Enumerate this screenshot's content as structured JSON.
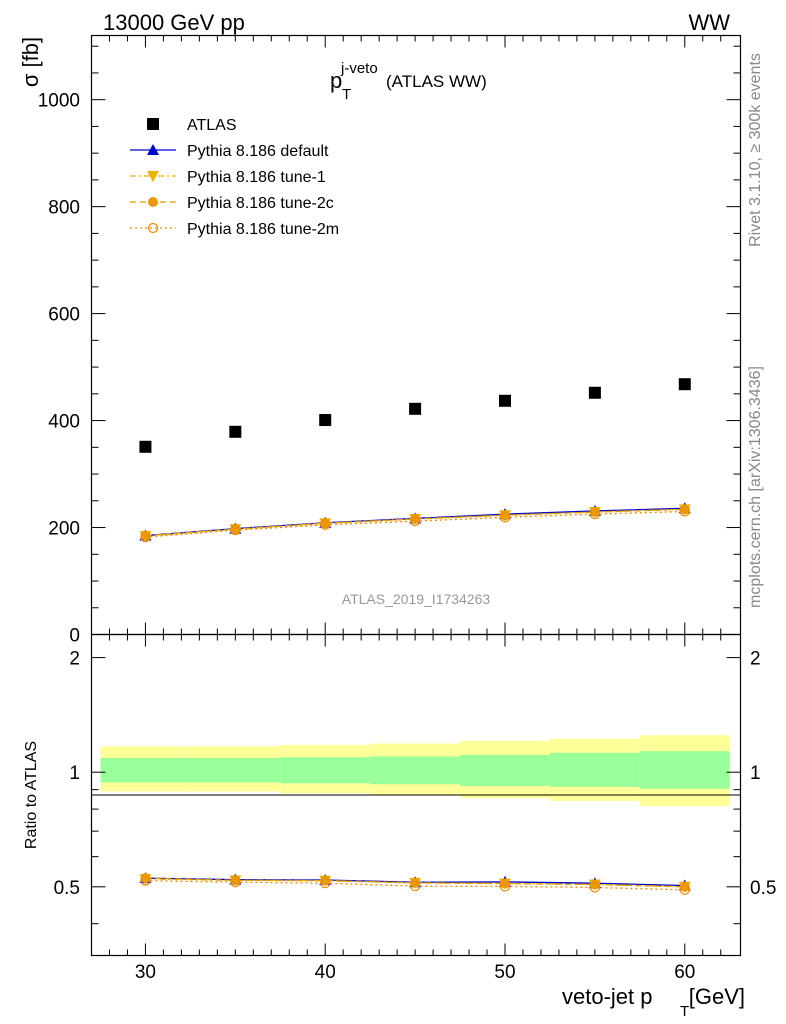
{
  "header": {
    "left": "13000 GeV pp",
    "right": "WW"
  },
  "side_labels": {
    "rivet": "Rivet 3.1.10, ≥ 300k events",
    "mcplots": "mcplots.cern.ch [arXiv:1306.3436]"
  },
  "chart_data": {
    "type": "scatter",
    "title_main": "p",
    "title_sub": "T",
    "title_sup": "j-veto",
    "title_suffix": "(ATLAS WW)",
    "analysis_id": "ATLAS_2019_I1734263",
    "xlabel_main": "veto-jet p",
    "xlabel_sub": "T",
    "xlabel_suffix": "[GeV]",
    "ylabel": "σ [fb]",
    "ratio_ylabel": "Ratio to ATLAS",
    "x_ticks": [
      "30",
      "40",
      "50",
      "60"
    ],
    "y_ticks": [
      "0",
      "200",
      "400",
      "600",
      "800",
      "1000"
    ],
    "ratio_ticks": [
      "0.5",
      "1",
      "2"
    ],
    "xlim": [
      27.0,
      63.1
    ],
    "ylim": [
      0,
      1120
    ],
    "ratio_ylim": [
      0.33,
      2.3
    ],
    "x": [
      30,
      35,
      40,
      45,
      50,
      55,
      60
    ],
    "bin_edges": [
      27.5,
      32.5,
      37.5,
      42.5,
      47.5,
      52.5,
      57.5,
      62.5
    ],
    "series": [
      {
        "name": "ATLAS",
        "color": "#000000",
        "marker": "square",
        "values": [
          351,
          379,
          401,
          422,
          437,
          452,
          468
        ]
      },
      {
        "name": "Pythia 8.186 default",
        "color": "#0000cc",
        "marker": "triangle-up",
        "line": "solid",
        "values": [
          185,
          198,
          209,
          217,
          225,
          231,
          236
        ]
      },
      {
        "name": "Pythia 8.186 tune-1",
        "color": "#e8b400",
        "marker": "triangle-down",
        "line": "dashdot",
        "values": [
          184,
          197,
          208,
          216,
          223,
          229,
          234
        ]
      },
      {
        "name": "Pythia 8.186 tune-2c",
        "color": "#e89a00",
        "marker": "circle-filled",
        "line": "dashed",
        "values": [
          185,
          197,
          208,
          216,
          223,
          229,
          234
        ]
      },
      {
        "name": "Pythia 8.186 tune-2m",
        "color": "#f08a00",
        "marker": "circle-open",
        "line": "dotted",
        "values": [
          182,
          195,
          205,
          212,
          219,
          225,
          230
        ]
      }
    ],
    "ratio": {
      "inner_band": [
        [
          0.94,
          1.09
        ],
        [
          0.94,
          1.09
        ],
        [
          0.935,
          1.095
        ],
        [
          0.93,
          1.1
        ],
        [
          0.92,
          1.11
        ],
        [
          0.915,
          1.125
        ],
        [
          0.905,
          1.135
        ]
      ],
      "outer_band": [
        [
          0.89,
          1.17
        ],
        [
          0.89,
          1.17
        ],
        [
          0.88,
          1.18
        ],
        [
          0.87,
          1.19
        ],
        [
          0.855,
          1.21
        ],
        [
          0.84,
          1.225
        ],
        [
          0.815,
          1.25
        ]
      ],
      "band_colors": {
        "inner": "#99ff99",
        "outer": "#ffff99"
      },
      "series": [
        {
          "name": "Pythia 8.186 default",
          "values": [
            0.527,
            0.522,
            0.521,
            0.514,
            0.515,
            0.511,
            0.504
          ]
        },
        {
          "name": "Pythia 8.186 tune-1",
          "values": [
            0.524,
            0.52,
            0.519,
            0.512,
            0.51,
            0.507,
            0.5
          ]
        },
        {
          "name": "Pythia 8.186 tune-2c",
          "values": [
            0.527,
            0.52,
            0.519,
            0.512,
            0.51,
            0.507,
            0.5
          ]
        },
        {
          "name": "Pythia 8.186 tune-2m",
          "values": [
            0.519,
            0.514,
            0.511,
            0.502,
            0.501,
            0.498,
            0.491
          ]
        }
      ]
    },
    "legend_position": "top-left",
    "grid": false
  }
}
